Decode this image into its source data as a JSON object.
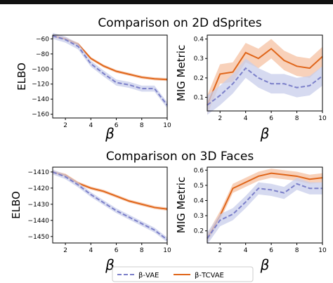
{
  "titles": {
    "top": "Comparison on 2D dSprites",
    "bottom": "Comparison on 3D Faces"
  },
  "legend": {
    "vae": "β-VAE",
    "tcvae": "β-TCVAE"
  },
  "colors": {
    "vae": "#7b7fc9",
    "vae_band": "#c8cdeb",
    "tcvae": "#e0661a",
    "tcvae_band": "#f6c1a3"
  },
  "chart_data": [
    {
      "type": "line",
      "title": "Comparison on 2D dSprites",
      "xlabel": "β",
      "ylabel": "ELBO",
      "xlim": [
        1,
        10
      ],
      "ylim": [
        -165,
        -55
      ],
      "xticks": [
        2,
        4,
        6,
        8,
        10
      ],
      "yticks": [
        -60,
        -80,
        -100,
        -120,
        -140,
        -160
      ],
      "series": [
        {
          "name": "β-VAE",
          "x": [
            1,
            2,
            3,
            4,
            5,
            6,
            7,
            8,
            9,
            10
          ],
          "y": [
            -56,
            -61,
            -70,
            -93,
            -106,
            -118,
            -121,
            -126,
            -126,
            -148
          ],
          "band": 4
        },
        {
          "name": "β-TCVAE",
          "x": [
            1,
            2,
            3,
            4,
            5,
            6,
            7,
            8,
            9,
            10
          ],
          "y": [
            -56,
            -60,
            -67,
            -86,
            -96,
            -103,
            -107,
            -111,
            -113,
            -114
          ],
          "band": 2
        }
      ]
    },
    {
      "type": "line",
      "title": "Comparison on 2D dSprites",
      "xlabel": "β",
      "ylabel": "MIG Metric",
      "xlim": [
        1,
        10
      ],
      "ylim": [
        0.03,
        0.42
      ],
      "xticks": [
        2,
        4,
        6,
        8,
        10
      ],
      "yticks": [
        0.1,
        0.2,
        0.3,
        0.4
      ],
      "series": [
        {
          "name": "β-VAE",
          "x": [
            1,
            2,
            3,
            4,
            5,
            6,
            7,
            8,
            9,
            10
          ],
          "y": [
            0.06,
            0.11,
            0.17,
            0.25,
            0.2,
            0.17,
            0.17,
            0.15,
            0.16,
            0.21
          ],
          "band": 0.05
        },
        {
          "name": "β-TCVAE",
          "x": [
            1,
            2,
            3,
            4,
            5,
            6,
            7,
            8,
            9,
            10
          ],
          "y": [
            0.06,
            0.22,
            0.23,
            0.33,
            0.3,
            0.35,
            0.29,
            0.26,
            0.25,
            0.31
          ],
          "band": 0.05
        }
      ]
    },
    {
      "type": "line",
      "title": "Comparison on 3D Faces",
      "xlabel": "β",
      "ylabel": "ELBO",
      "xlim": [
        1,
        10
      ],
      "ylim": [
        -1454,
        -1407
      ],
      "xticks": [
        2,
        4,
        6,
        8,
        10
      ],
      "yticks": [
        -1410,
        -1420,
        -1430,
        -1440,
        -1450
      ],
      "series": [
        {
          "name": "β-VAE",
          "x": [
            1,
            2,
            3,
            4,
            5,
            6,
            7,
            8,
            9,
            10
          ],
          "y": [
            -1410,
            -1413,
            -1418,
            -1424,
            -1429,
            -1434,
            -1438,
            -1442,
            -1446,
            -1452
          ],
          "band": 1.5
        },
        {
          "name": "β-TCVAE",
          "x": [
            1,
            2,
            3,
            4,
            5,
            6,
            7,
            8,
            9,
            10
          ],
          "y": [
            -1410,
            -1412,
            -1417,
            -1420,
            -1422,
            -1425,
            -1428,
            -1430,
            -1432,
            -1433
          ],
          "band": 1
        }
      ]
    },
    {
      "type": "line",
      "title": "Comparison on 3D Faces",
      "xlabel": "β",
      "ylabel": "MIG Metric",
      "xlim": [
        1,
        10
      ],
      "ylim": [
        0.12,
        0.62
      ],
      "xticks": [
        2,
        4,
        6,
        8,
        10
      ],
      "yticks": [
        0.2,
        0.3,
        0.4,
        0.5,
        0.6
      ],
      "series": [
        {
          "name": "β-VAE",
          "x": [
            1,
            2,
            3,
            4,
            5,
            6,
            7,
            8,
            9,
            10
          ],
          "y": [
            0.15,
            0.27,
            0.31,
            0.39,
            0.48,
            0.47,
            0.45,
            0.51,
            0.48,
            0.48
          ],
          "band": 0.04
        },
        {
          "name": "β-TCVAE",
          "x": [
            1,
            2,
            3,
            4,
            5,
            6,
            7,
            8,
            9,
            10
          ],
          "y": [
            0.15,
            0.3,
            0.48,
            0.52,
            0.56,
            0.58,
            0.57,
            0.56,
            0.54,
            0.55
          ],
          "band": 0.03
        }
      ]
    }
  ]
}
